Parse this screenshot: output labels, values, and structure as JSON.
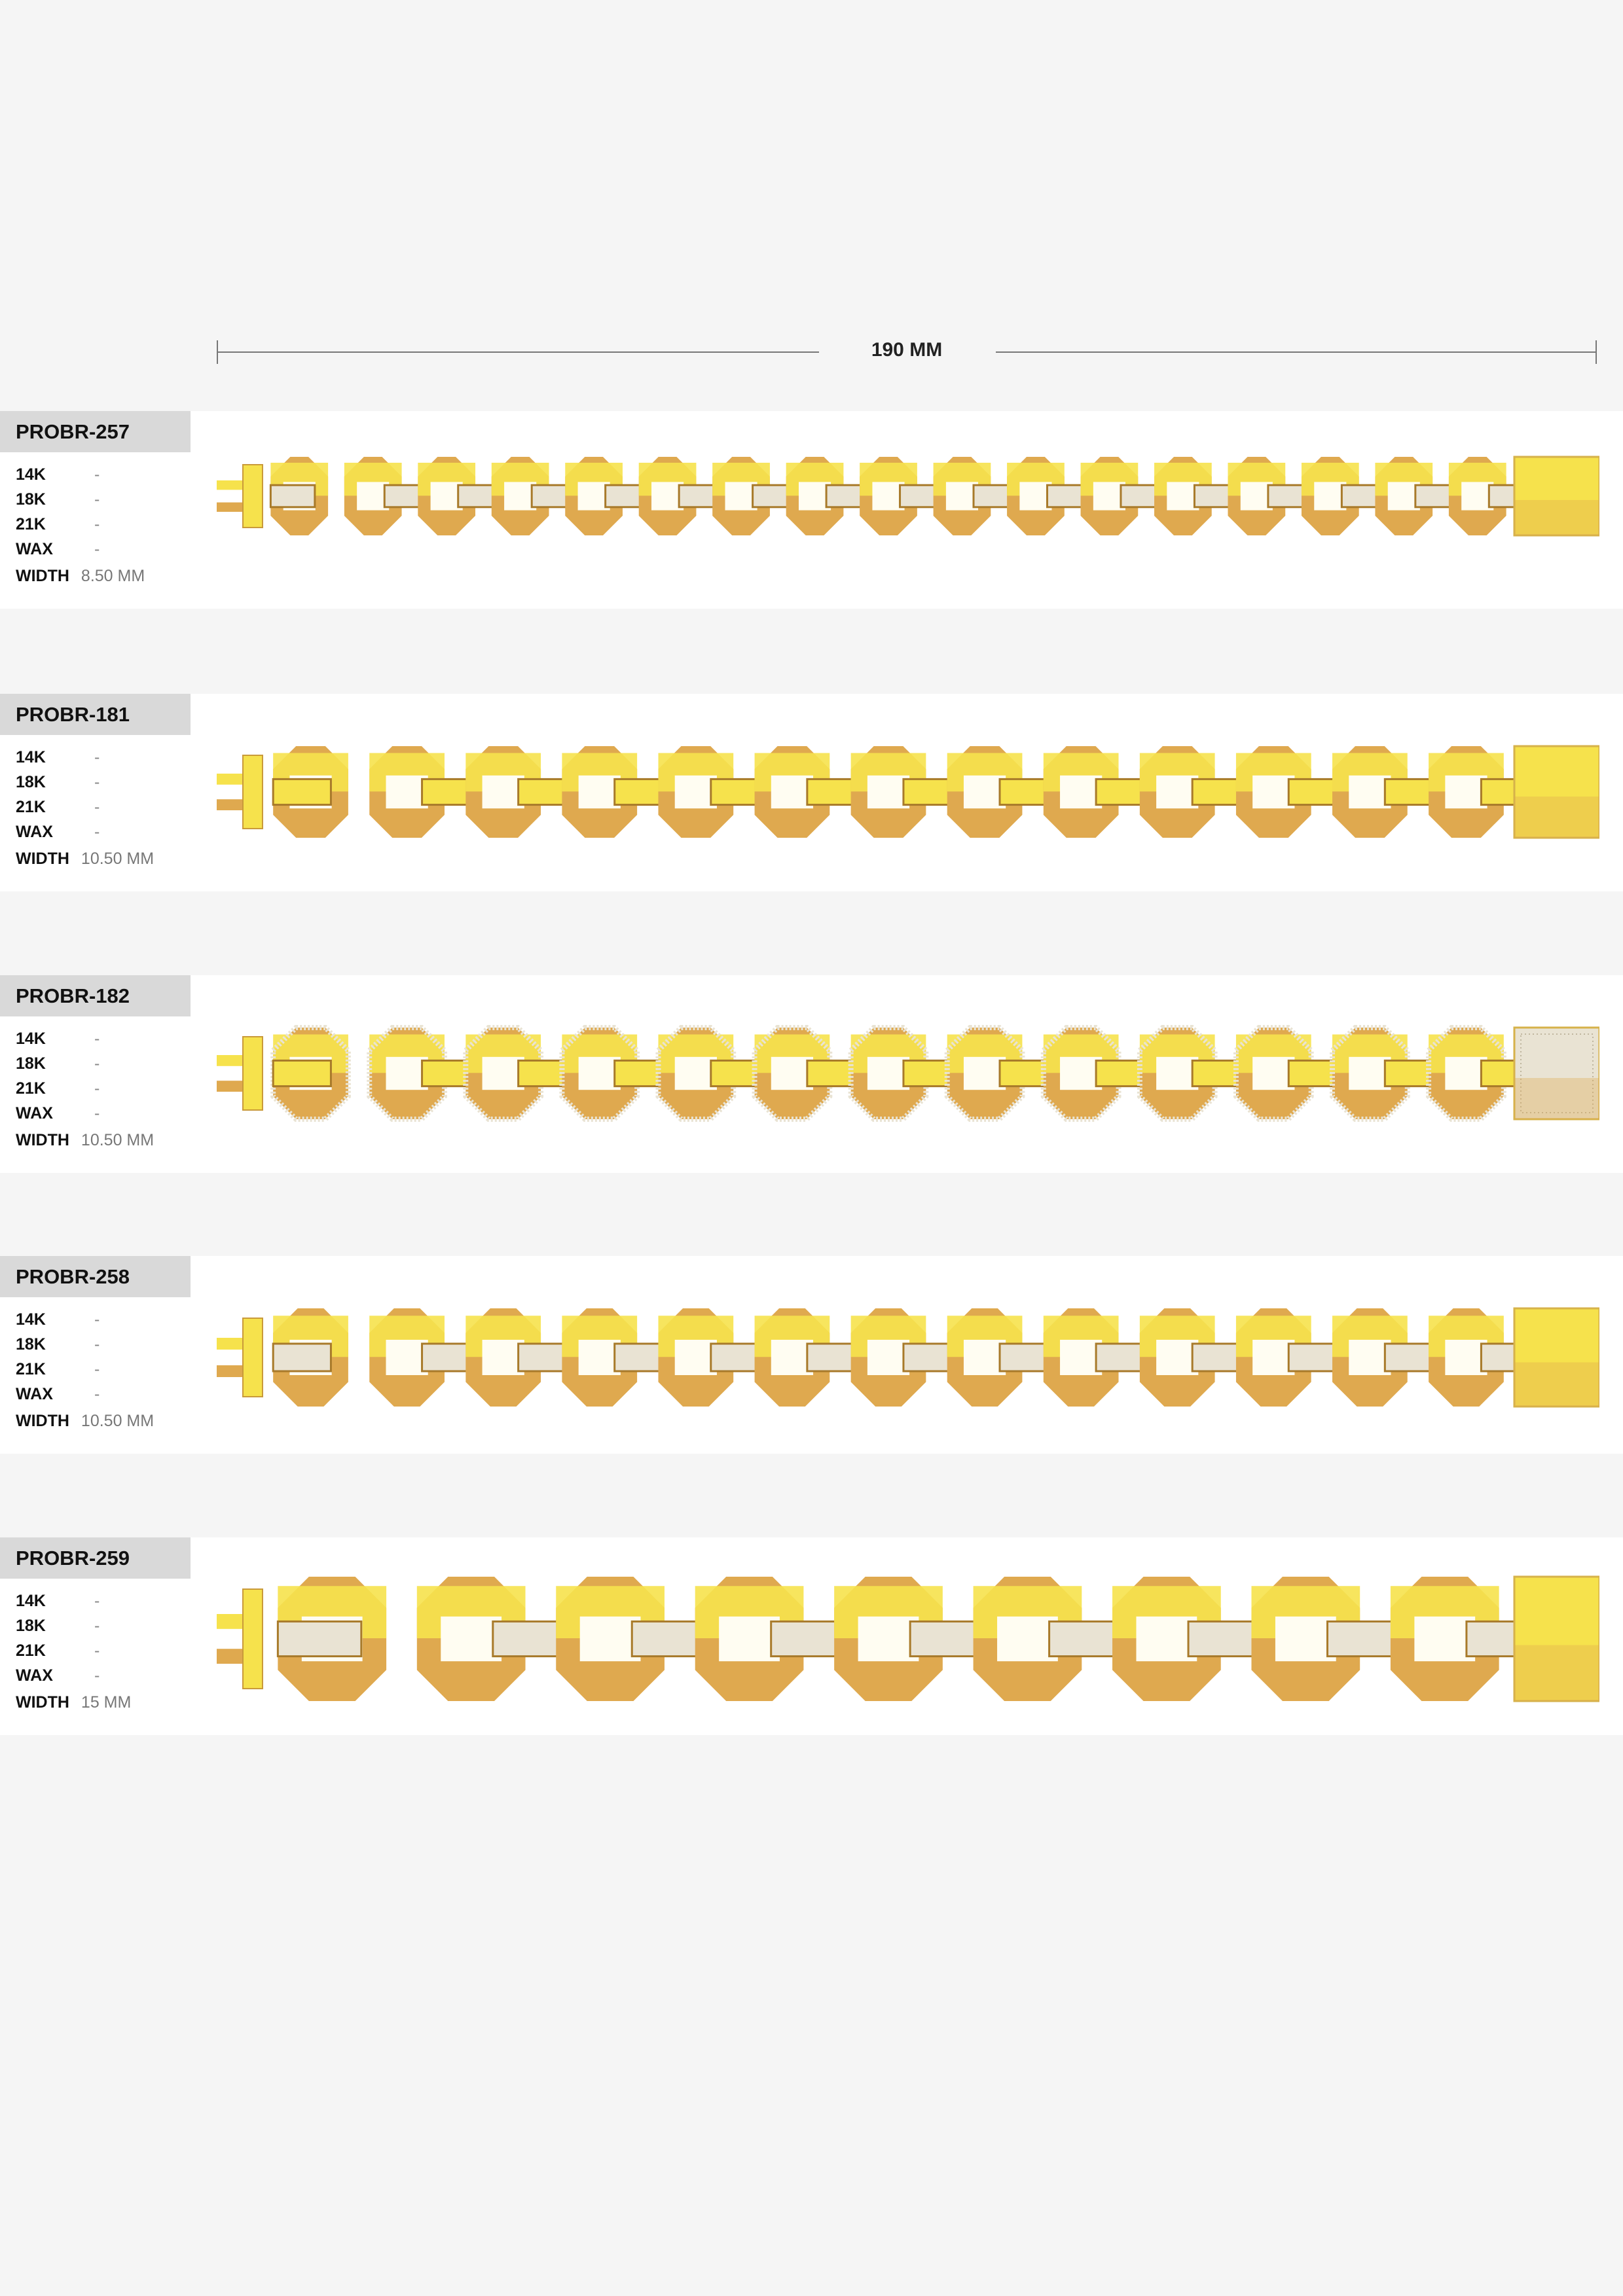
{
  "ruler": {
    "label": "190 MM"
  },
  "colors": {
    "gold_light": "#f6e24c",
    "gold_dark": "#dfa94f",
    "label_bg": "#d9d9d9",
    "pave": "#e9e3d3"
  },
  "products": [
    {
      "code": "PROBR-257",
      "specs": [
        {
          "k": "14K",
          "v": "-"
        },
        {
          "k": "18K",
          "v": "-"
        },
        {
          "k": "21K",
          "v": "-"
        },
        {
          "k": "WAX",
          "v": "-"
        }
      ],
      "width_label": "WIDTH",
      "width": "8.50 MM"
    },
    {
      "code": "PROBR-181",
      "specs": [
        {
          "k": "14K",
          "v": "-"
        },
        {
          "k": "18K",
          "v": "-"
        },
        {
          "k": "21K",
          "v": "-"
        },
        {
          "k": "WAX",
          "v": "-"
        }
      ],
      "width_label": "WIDTH",
      "width": "10.50 MM"
    },
    {
      "code": "PROBR-182",
      "specs": [
        {
          "k": "14K",
          "v": "-"
        },
        {
          "k": "18K",
          "v": "-"
        },
        {
          "k": "21K",
          "v": "-"
        },
        {
          "k": "WAX",
          "v": "-"
        }
      ],
      "width_label": "WIDTH",
      "width": "10.50 MM"
    },
    {
      "code": "PROBR-258",
      "specs": [
        {
          "k": "14K",
          "v": "-"
        },
        {
          "k": "18K",
          "v": "-"
        },
        {
          "k": "21K",
          "v": "-"
        },
        {
          "k": "WAX",
          "v": "-"
        }
      ],
      "width_label": "WIDTH",
      "width": "10.50 MM"
    },
    {
      "code": "PROBR-259",
      "specs": [
        {
          "k": "14K",
          "v": "-"
        },
        {
          "k": "18K",
          "v": "-"
        },
        {
          "k": "21K",
          "v": "-"
        },
        {
          "k": "WAX",
          "v": "-"
        }
      ],
      "width_label": "WIDTH",
      "width": "15 MM"
    }
  ]
}
